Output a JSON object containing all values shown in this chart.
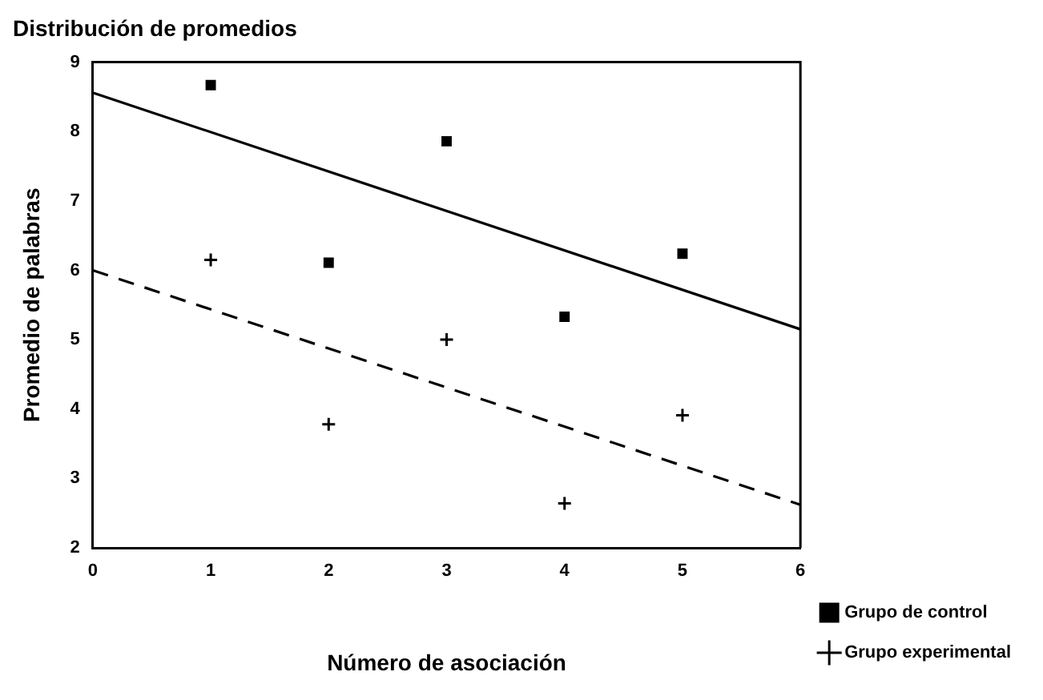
{
  "chart_data": {
    "type": "scatter",
    "title": "Distribución de promedios",
    "xlabel": "Número de asociación",
    "ylabel": "Promedio de palabras",
    "xlim": [
      0,
      6
    ],
    "xticks": [
      0,
      1,
      2,
      3,
      4,
      5,
      6
    ],
    "ylim": [
      2,
      9
    ],
    "yticks": [
      2,
      3,
      4,
      5,
      6,
      7,
      8,
      9
    ],
    "grid": false,
    "legend": "right",
    "series": [
      {
        "name": "Grupo de control",
        "marker": "square",
        "color": "#000000",
        "x": [
          1,
          2,
          3,
          4,
          5
        ],
        "values": [
          8.67,
          6.11,
          7.86,
          5.33,
          6.24
        ]
      },
      {
        "name": "Grupo experimental",
        "marker": "cross",
        "color": "#000000",
        "x": [
          1,
          2,
          3,
          4,
          5
        ],
        "values": [
          6.15,
          3.78,
          5.0,
          2.64,
          3.91
        ]
      },
      {
        "type": "line",
        "marker": "none",
        "line_style": "solid",
        "color": "#000000",
        "x": [
          0,
          6
        ],
        "values": [
          8.56,
          5.15
        ]
      },
      {
        "type": "line",
        "marker": "none",
        "line_style": "dashed",
        "color": "#000000",
        "x": [
          0,
          6
        ],
        "values": [
          6.0,
          2.62
        ]
      }
    ]
  }
}
